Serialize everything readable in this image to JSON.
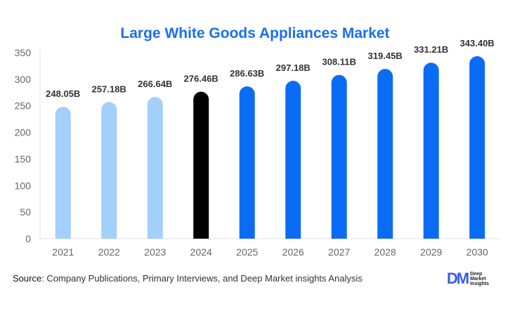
{
  "chart_data": {
    "type": "bar",
    "title": "Large White Goods Appliances Market",
    "categories": [
      "2021",
      "2022",
      "2023",
      "2024",
      "2025",
      "2026",
      "2027",
      "2028",
      "2029",
      "2030"
    ],
    "values": [
      248.05,
      257.18,
      266.64,
      276.46,
      286.63,
      297.18,
      308.11,
      319.45,
      331.21,
      343.4
    ],
    "data_labels": [
      "248.05B",
      "257.18B",
      "266.64B",
      "276.46B",
      "286.63B",
      "297.18B",
      "308.11B",
      "319.45B",
      "331.21B",
      "343.40B"
    ],
    "ylim": [
      0,
      350
    ],
    "yticks": [
      0,
      50,
      100,
      150,
      200,
      250,
      300,
      350
    ],
    "xlabel": "",
    "ylabel": "",
    "grid": false,
    "colors": {
      "historical": "#a3cffb",
      "base_year": "#000000",
      "forecast": "#0a6cf5",
      "title": "#1a6ff0"
    }
  },
  "footer": {
    "source_label": "Source",
    "source_text": ": Company Publications, Primary Interviews, and Deep Market insights Analysis",
    "logo_mark": "DM",
    "logo_text": [
      "Deep",
      "Market",
      "Insights"
    ]
  }
}
